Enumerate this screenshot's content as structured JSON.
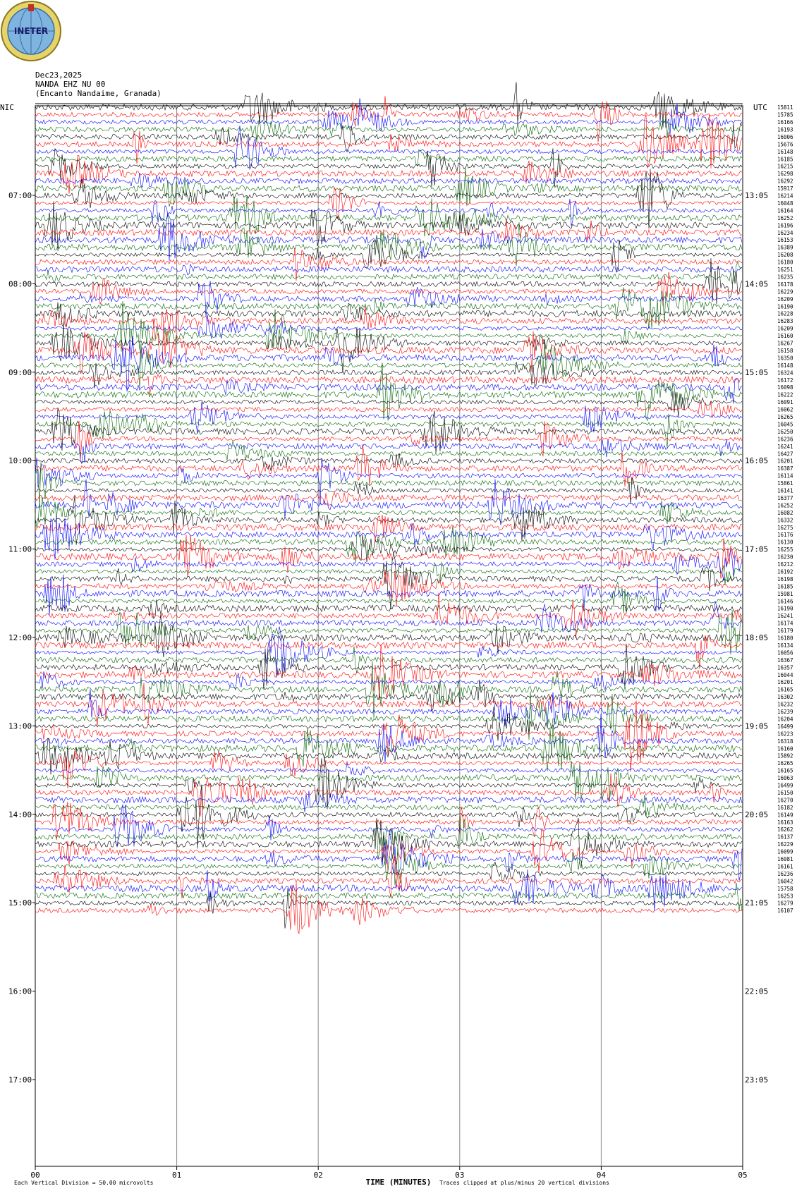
{
  "header": {
    "logo_text": "INETER",
    "date": "Dec23,2025",
    "station": "NANDA EHZ NU 00",
    "location": "(Encanto Nandaime, Granada)",
    "left_zone": "NIC",
    "right_zone": "UTC"
  },
  "footer": {
    "xlabel": "TIME (MINUTES)",
    "scale_note": "Each Vertical Division =   50.00 microvolts",
    "clip_note": "Traces clipped at plus/minus 20 vertical divisions"
  },
  "chart_data": {
    "type": "line",
    "title": "",
    "xlabel": "TIME (MINUTES)",
    "x_ticks": [
      "00",
      "01",
      "02",
      "03",
      "04",
      "05"
    ],
    "xlim": [
      0,
      5
    ],
    "left_hour_labels": [
      "07:00",
      "08:00",
      "09:00",
      "10:00",
      "11:00",
      "12:00",
      "13:00",
      "14:00",
      "15:00",
      "16:00",
      "17:00"
    ],
    "right_hour_labels": [
      "13:05",
      "14:05",
      "15:05",
      "16:05",
      "17:05",
      "18:05",
      "19:05",
      "20:05",
      "21:05",
      "22:05",
      "23:05"
    ],
    "row_counts": [
      15811,
      15785,
      16166,
      16193,
      16006,
      15676,
      16148,
      16185,
      16215,
      16298,
      16292,
      15917,
      16214,
      16048,
      16164,
      16252,
      16196,
      16234,
      16153,
      16389,
      16208,
      16180,
      16251,
      16235,
      16178,
      16229,
      16209,
      16190,
      16228,
      16283,
      16209,
      16160,
      16267,
      16158,
      16350,
      16148,
      16324,
      16172,
      16098,
      16222,
      16091,
      16062,
      16265,
      16045,
      16250,
      16236,
      16241,
      16427,
      16201,
      16387,
      16114,
      15861,
      16141,
      16377,
      16252,
      16082,
      16332,
      16275,
      16176,
      16130,
      16255,
      16230,
      16212,
      16192,
      16198,
      16185,
      15981,
      16146,
      16190,
      16241,
      16174,
      16179,
      16180,
      16134,
      16056,
      16367,
      16357,
      16044,
      16201,
      16165,
      16302,
      16232,
      16239,
      16204,
      16499,
      16223,
      16318,
      16160,
      15892,
      16265,
      16165,
      16063,
      16499,
      16150,
      16270,
      16182,
      16149,
      16163,
      16262,
      16137,
      16229,
      16099,
      16081,
      16161,
      16236,
      16042,
      15758,
      16253,
      16279,
      16107
    ],
    "trace_colors": [
      "#000000",
      "#ff0000",
      "#0000ff",
      "#006400"
    ],
    "rows_per_hour": 12,
    "minutes_per_row": 5,
    "grid": true
  }
}
